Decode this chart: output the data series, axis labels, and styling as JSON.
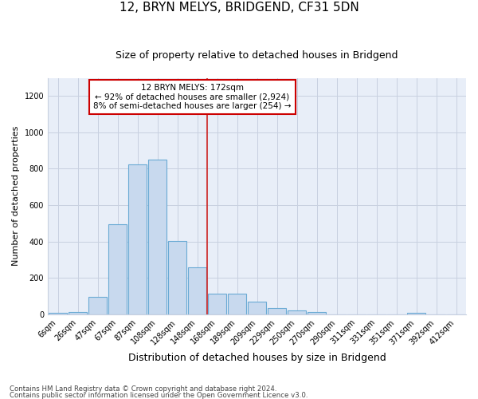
{
  "title": "12, BRYN MELYS, BRIDGEND, CF31 5DN",
  "subtitle": "Size of property relative to detached houses in Bridgend",
  "xlabel": "Distribution of detached houses by size in Bridgend",
  "ylabel": "Number of detached properties",
  "footnote1": "Contains HM Land Registry data © Crown copyright and database right 2024.",
  "footnote2": "Contains public sector information licensed under the Open Government Licence v3.0.",
  "bar_color": "#c8d9ee",
  "bar_edge_color": "#6aaad4",
  "vline_color": "#cc2222",
  "annotation_line1": "12 BRYN MELYS: 172sqm",
  "annotation_line2": "← 92% of detached houses are smaller (2,924)",
  "annotation_line3": "8% of semi-detached houses are larger (254) →",
  "annotation_box_color": "#cc0000",
  "categories": [
    "6sqm",
    "26sqm",
    "47sqm",
    "67sqm",
    "87sqm",
    "108sqm",
    "128sqm",
    "148sqm",
    "168sqm",
    "189sqm",
    "209sqm",
    "229sqm",
    "250sqm",
    "270sqm",
    "290sqm",
    "311sqm",
    "331sqm",
    "351sqm",
    "371sqm",
    "392sqm",
    "412sqm"
  ],
  "values": [
    8,
    12,
    97,
    495,
    825,
    850,
    405,
    258,
    115,
    112,
    68,
    33,
    22,
    14,
    0,
    0,
    0,
    0,
    9,
    0,
    0
  ],
  "vline_bin_index": 8,
  "ylim": [
    0,
    1300
  ],
  "yticks": [
    0,
    200,
    400,
    600,
    800,
    1000,
    1200
  ],
  "grid_color": "#c8d0e0",
  "background_color": "#e8eef8",
  "title_fontsize": 11,
  "subtitle_fontsize": 9,
  "xlabel_fontsize": 9,
  "ylabel_fontsize": 8,
  "tick_fontsize": 7,
  "annotation_fontsize": 7.5,
  "footnote_fontsize": 6.2
}
